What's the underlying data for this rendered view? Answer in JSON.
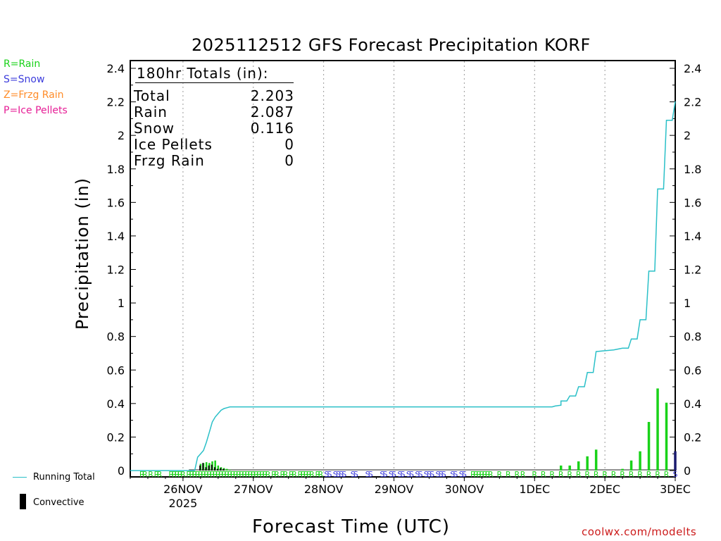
{
  "title": "2025112512 GFS Forecast Precipitation KORF",
  "key": [
    {
      "text": "R=Rain",
      "color": "#19d219"
    },
    {
      "text": "S=Snow",
      "color": "#3c3cdc"
    },
    {
      "text": "Z=Frzg Rain",
      "color": "#ff8c28"
    },
    {
      "text": "P=Ice Pellets",
      "color": "#e61e96"
    }
  ],
  "legend": {
    "running_total": "Running Total",
    "convective": "Convective"
  },
  "credit": "coolwx.com/modelts",
  "totals": {
    "header": "180hr Totals (in):",
    "rows": [
      {
        "label": "Total",
        "value": "2.203"
      },
      {
        "label": "Rain",
        "value": "2.087"
      },
      {
        "label": "Snow",
        "value": "0.116"
      },
      {
        "label": "Ice Pellets",
        "value": "0"
      },
      {
        "label": "Frzg Rain",
        "value": "0"
      }
    ]
  },
  "colors": {
    "rain": "#19d219",
    "snow": "#3c3cdc",
    "running_total": "#2bc0c8",
    "convective": "#000000",
    "grid": "#9a9a9a"
  },
  "chart_data": {
    "type": "bar",
    "title": "2025112512 GFS Forecast Precipitation KORF",
    "xlabel": "Forecast Time (UTC)",
    "ylabel": "Precipitation (in)",
    "ylim": [
      0,
      2.4
    ],
    "xlim_hours": [
      -6,
      180
    ],
    "yticks": [
      0,
      0.2,
      0.4,
      0.6,
      0.8,
      1,
      1.2,
      1.4,
      1.6,
      1.8,
      2,
      2.2,
      2.4
    ],
    "ytick_labels": [
      "0",
      "0.2",
      "0.4",
      "0.6",
      "0.8",
      "1",
      "1.2",
      "1.4",
      "1.6",
      "1.8",
      "2",
      "2.2",
      "2.4"
    ],
    "xticks": [
      {
        "hour": 12,
        "label": "26NOV",
        "sub": "2025"
      },
      {
        "hour": 36,
        "label": "27NOV",
        "sub": ""
      },
      {
        "hour": 60,
        "label": "28NOV",
        "sub": ""
      },
      {
        "hour": 84,
        "label": "29NOV",
        "sub": ""
      },
      {
        "hour": 108,
        "label": "30NOV",
        "sub": ""
      },
      {
        "hour": 132,
        "label": "1DEC",
        "sub": ""
      },
      {
        "hour": 156,
        "label": "2DEC",
        "sub": ""
      },
      {
        "hour": 180,
        "label": "3DEC",
        "sub": ""
      }
    ],
    "bars": [
      {
        "hour": 18,
        "value": 0.04,
        "convective": 0.03
      },
      {
        "hour": 19,
        "value": 0.045,
        "convective": 0.045
      },
      {
        "hour": 20,
        "value": 0.05,
        "convective": 0.02
      },
      {
        "hour": 21,
        "value": 0.045,
        "convective": 0.03
      },
      {
        "hour": 22,
        "value": 0.055,
        "convective": 0.035
      },
      {
        "hour": 23,
        "value": 0.06,
        "convective": 0.02
      },
      {
        "hour": 24,
        "value": 0.03,
        "convective": 0.01
      },
      {
        "hour": 25,
        "value": 0.02,
        "convective": 0.015
      },
      {
        "hour": 26,
        "value": 0.015,
        "convective": 0.01
      },
      {
        "hour": 27,
        "value": 0.01,
        "convective": 0.0
      },
      {
        "hour": 28,
        "value": 0.005,
        "convective": 0.0
      },
      {
        "hour": 141,
        "value": 0.03,
        "convective": 0.0
      },
      {
        "hour": 144,
        "value": 0.03,
        "convective": 0.0
      },
      {
        "hour": 147,
        "value": 0.055,
        "convective": 0.0
      },
      {
        "hour": 150,
        "value": 0.085,
        "convective": 0.0
      },
      {
        "hour": 153,
        "value": 0.125,
        "convective": 0.0
      },
      {
        "hour": 162,
        "value": 0.01,
        "convective": 0.0
      },
      {
        "hour": 165,
        "value": 0.06,
        "convective": 0.0
      },
      {
        "hour": 168,
        "value": 0.115,
        "convective": 0.0
      },
      {
        "hour": 171,
        "value": 0.29,
        "convective": 0.0
      },
      {
        "hour": 174,
        "value": 0.49,
        "convective": 0.0
      },
      {
        "hour": 177,
        "value": 0.405,
        "convective": 0.0
      },
      {
        "hour": 180,
        "value": 0.115,
        "convective": 0.115
      }
    ],
    "running_total": [
      {
        "hour": -6,
        "value": 0.0
      },
      {
        "hour": 16,
        "value": 0.0
      },
      {
        "hour": 17,
        "value": 0.08
      },
      {
        "hour": 18,
        "value": 0.1
      },
      {
        "hour": 19,
        "value": 0.12
      },
      {
        "hour": 20,
        "value": 0.17
      },
      {
        "hour": 21,
        "value": 0.23
      },
      {
        "hour": 22,
        "value": 0.29
      },
      {
        "hour": 23,
        "value": 0.32
      },
      {
        "hour": 24,
        "value": 0.34
      },
      {
        "hour": 25,
        "value": 0.36
      },
      {
        "hour": 26,
        "value": 0.37
      },
      {
        "hour": 27,
        "value": 0.375
      },
      {
        "hour": 28,
        "value": 0.38
      },
      {
        "hour": 138,
        "value": 0.38
      },
      {
        "hour": 139,
        "value": 0.385
      },
      {
        "hour": 141,
        "value": 0.39
      },
      {
        "hour": 141,
        "value": 0.415
      },
      {
        "hour": 143,
        "value": 0.415
      },
      {
        "hour": 144,
        "value": 0.445
      },
      {
        "hour": 146,
        "value": 0.445
      },
      {
        "hour": 147,
        "value": 0.5
      },
      {
        "hour": 149,
        "value": 0.5
      },
      {
        "hour": 150,
        "value": 0.585
      },
      {
        "hour": 152,
        "value": 0.585
      },
      {
        "hour": 153,
        "value": 0.71
      },
      {
        "hour": 156,
        "value": 0.715
      },
      {
        "hour": 159,
        "value": 0.72
      },
      {
        "hour": 162,
        "value": 0.73
      },
      {
        "hour": 164,
        "value": 0.73
      },
      {
        "hour": 165,
        "value": 0.785
      },
      {
        "hour": 167,
        "value": 0.785
      },
      {
        "hour": 168,
        "value": 0.9
      },
      {
        "hour": 170,
        "value": 0.9
      },
      {
        "hour": 171,
        "value": 1.19
      },
      {
        "hour": 173,
        "value": 1.19
      },
      {
        "hour": 174,
        "value": 1.68
      },
      {
        "hour": 176,
        "value": 1.68
      },
      {
        "hour": 177,
        "value": 2.09
      },
      {
        "hour": 179,
        "value": 2.09
      },
      {
        "hour": 180,
        "value": 2.203
      }
    ],
    "ptype_markers": [
      {
        "hour": -2,
        "ptype": "R"
      },
      {
        "hour": -1,
        "ptype": "R"
      },
      {
        "hour": 1,
        "ptype": "R"
      },
      {
        "hour": 3,
        "ptype": "R"
      },
      {
        "hour": 4,
        "ptype": "R"
      },
      {
        "hour": 8,
        "ptype": "R"
      },
      {
        "hour": 9,
        "ptype": "R"
      },
      {
        "hour": 10,
        "ptype": "R"
      },
      {
        "hour": 11,
        "ptype": "R"
      },
      {
        "hour": 12,
        "ptype": "R"
      },
      {
        "hour": 14,
        "ptype": "R"
      },
      {
        "hour": 15,
        "ptype": "R"
      },
      {
        "hour": 16,
        "ptype": "R"
      },
      {
        "hour": 17,
        "ptype": "R"
      },
      {
        "hour": 18,
        "ptype": "R"
      },
      {
        "hour": 19,
        "ptype": "R"
      },
      {
        "hour": 20,
        "ptype": "R"
      },
      {
        "hour": 21,
        "ptype": "R"
      },
      {
        "hour": 22,
        "ptype": "R"
      },
      {
        "hour": 23,
        "ptype": "R"
      },
      {
        "hour": 24,
        "ptype": "R"
      },
      {
        "hour": 25,
        "ptype": "R"
      },
      {
        "hour": 26,
        "ptype": "R"
      },
      {
        "hour": 27,
        "ptype": "R"
      },
      {
        "hour": 28,
        "ptype": "R"
      },
      {
        "hour": 29,
        "ptype": "R"
      },
      {
        "hour": 30,
        "ptype": "R"
      },
      {
        "hour": 31,
        "ptype": "R"
      },
      {
        "hour": 32,
        "ptype": "R"
      },
      {
        "hour": 33,
        "ptype": "R"
      },
      {
        "hour": 34,
        "ptype": "R"
      },
      {
        "hour": 35,
        "ptype": "R"
      },
      {
        "hour": 36,
        "ptype": "R"
      },
      {
        "hour": 37,
        "ptype": "R"
      },
      {
        "hour": 38,
        "ptype": "R"
      },
      {
        "hour": 39,
        "ptype": "R"
      },
      {
        "hour": 40,
        "ptype": "R"
      },
      {
        "hour": 41,
        "ptype": "R"
      },
      {
        "hour": 43,
        "ptype": "R"
      },
      {
        "hour": 44,
        "ptype": "R"
      },
      {
        "hour": 46,
        "ptype": "R"
      },
      {
        "hour": 47,
        "ptype": "R"
      },
      {
        "hour": 49,
        "ptype": "R"
      },
      {
        "hour": 50,
        "ptype": "R"
      },
      {
        "hour": 52,
        "ptype": "R"
      },
      {
        "hour": 53,
        "ptype": "R"
      },
      {
        "hour": 54,
        "ptype": "R"
      },
      {
        "hour": 55,
        "ptype": "R"
      },
      {
        "hour": 56,
        "ptype": "R"
      },
      {
        "hour": 58,
        "ptype": "R"
      },
      {
        "hour": 59,
        "ptype": "R"
      },
      {
        "hour": 61,
        "ptype": "S"
      },
      {
        "hour": 62,
        "ptype": "S"
      },
      {
        "hour": 64,
        "ptype": "S"
      },
      {
        "hour": 65,
        "ptype": "S"
      },
      {
        "hour": 66,
        "ptype": "S"
      },
      {
        "hour": 67,
        "ptype": "S"
      },
      {
        "hour": 70,
        "ptype": "S"
      },
      {
        "hour": 71,
        "ptype": "S"
      },
      {
        "hour": 75,
        "ptype": "S"
      },
      {
        "hour": 76,
        "ptype": "S"
      },
      {
        "hour": 80,
        "ptype": "S"
      },
      {
        "hour": 81,
        "ptype": "S"
      },
      {
        "hour": 83,
        "ptype": "S"
      },
      {
        "hour": 84,
        "ptype": "S"
      },
      {
        "hour": 86,
        "ptype": "S"
      },
      {
        "hour": 87,
        "ptype": "S"
      },
      {
        "hour": 89,
        "ptype": "S"
      },
      {
        "hour": 90,
        "ptype": "S"
      },
      {
        "hour": 92,
        "ptype": "S"
      },
      {
        "hour": 93,
        "ptype": "S"
      },
      {
        "hour": 95,
        "ptype": "S"
      },
      {
        "hour": 96,
        "ptype": "S"
      },
      {
        "hour": 97,
        "ptype": "S"
      },
      {
        "hour": 99,
        "ptype": "S"
      },
      {
        "hour": 100,
        "ptype": "S"
      },
      {
        "hour": 101,
        "ptype": "S"
      },
      {
        "hour": 104,
        "ptype": "S"
      },
      {
        "hour": 105,
        "ptype": "S"
      },
      {
        "hour": 107,
        "ptype": "S"
      },
      {
        "hour": 108,
        "ptype": "S"
      },
      {
        "hour": 111,
        "ptype": "R"
      },
      {
        "hour": 112,
        "ptype": "R"
      },
      {
        "hour": 113,
        "ptype": "R"
      },
      {
        "hour": 114,
        "ptype": "R"
      },
      {
        "hour": 115,
        "ptype": "R"
      },
      {
        "hour": 116,
        "ptype": "R"
      },
      {
        "hour": 117,
        "ptype": "R"
      },
      {
        "hour": 120,
        "ptype": "R"
      },
      {
        "hour": 123,
        "ptype": "R"
      },
      {
        "hour": 126,
        "ptype": "R"
      },
      {
        "hour": 128,
        "ptype": "R"
      },
      {
        "hour": 132,
        "ptype": "R"
      },
      {
        "hour": 135,
        "ptype": "R"
      },
      {
        "hour": 138,
        "ptype": "R"
      },
      {
        "hour": 141,
        "ptype": "R"
      },
      {
        "hour": 144,
        "ptype": "R"
      },
      {
        "hour": 147,
        "ptype": "R"
      },
      {
        "hour": 150,
        "ptype": "R"
      },
      {
        "hour": 153,
        "ptype": "R"
      },
      {
        "hour": 156,
        "ptype": "R"
      },
      {
        "hour": 159,
        "ptype": "R"
      },
      {
        "hour": 162,
        "ptype": "R"
      },
      {
        "hour": 165,
        "ptype": "R"
      },
      {
        "hour": 168,
        "ptype": "R"
      },
      {
        "hour": 171,
        "ptype": "R"
      },
      {
        "hour": 174,
        "ptype": "R"
      },
      {
        "hour": 177,
        "ptype": "R"
      },
      {
        "hour": 180,
        "ptype": "S"
      }
    ]
  }
}
